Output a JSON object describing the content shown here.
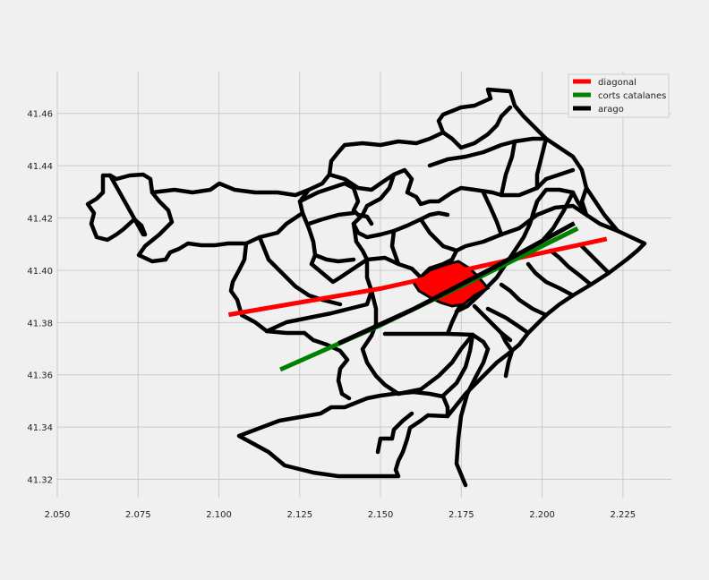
{
  "chart_data": {
    "type": "map",
    "xlim": [
      2.05,
      2.24
    ],
    "ylim": [
      41.313,
      41.476
    ],
    "xticks": [
      "2.050",
      "2.075",
      "2.100",
      "2.125",
      "2.150",
      "2.175",
      "2.200",
      "2.225"
    ],
    "yticks": [
      "41.32",
      "41.34",
      "41.36",
      "41.38",
      "41.40",
      "41.42",
      "41.44",
      "41.46"
    ],
    "grid": true,
    "legend_position": "top-right",
    "series": [
      {
        "name": "diagonal",
        "color": "#ff0000",
        "points": [
          [
            2.103,
            41.383
          ],
          [
            2.15,
            41.393
          ],
          [
            2.19,
            41.404
          ],
          [
            2.22,
            41.412
          ]
        ]
      },
      {
        "name": "corts catalanes",
        "color": "#008000",
        "points": [
          [
            2.119,
            41.362
          ],
          [
            2.15,
            41.379
          ],
          [
            2.18,
            41.397
          ],
          [
            2.211,
            41.416
          ]
        ]
      },
      {
        "name": "arago",
        "color": "#000000",
        "points": [
          [
            2.137,
            41.372
          ],
          [
            2.16,
            41.385
          ],
          [
            2.185,
            41.401
          ],
          [
            2.21,
            41.418
          ]
        ]
      }
    ],
    "highlighted_region": {
      "color": "#ff0000"
    },
    "boundaries_color": "#000000"
  }
}
